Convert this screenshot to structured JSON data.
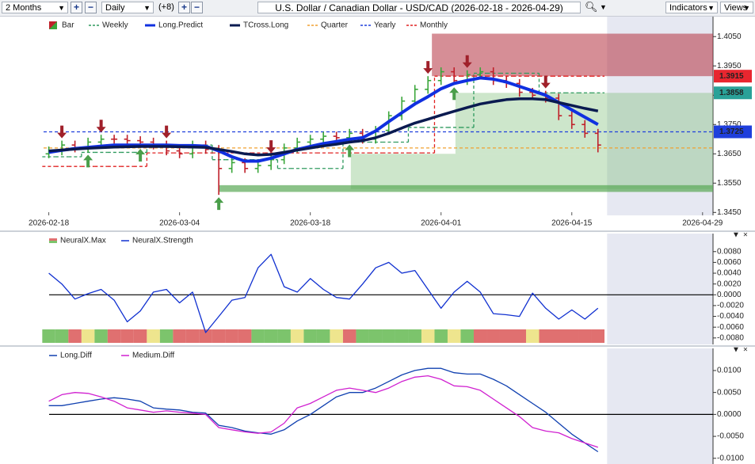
{
  "toolbar": {
    "range": "2 Months",
    "interval": "Daily",
    "offset": "(+8)",
    "symbol": "U.S. Dollar / Canadian Dollar - USD/CAD (2026-02-18 - 2026-04-29)",
    "indicators": "Indicators",
    "views": "Views"
  },
  "chart_data": [
    {
      "type": "ohlc",
      "name": "Bar",
      "up_color": "#3aa63a",
      "down_color": "#c0202a",
      "open": [
        1.365,
        1.366,
        1.368,
        1.367,
        1.369,
        1.37,
        1.37,
        1.3695,
        1.369,
        1.368,
        1.366,
        1.365,
        1.368,
        1.3665,
        1.36,
        1.362,
        1.36,
        1.361,
        1.363,
        1.367,
        1.369,
        1.37,
        1.371,
        1.3705,
        1.372,
        1.37,
        1.373,
        1.378,
        1.383,
        1.387,
        1.39,
        1.393,
        1.39,
        1.392,
        1.393,
        1.39,
        1.389,
        1.386,
        1.385,
        1.384,
        1.378,
        1.375,
        1.372
      ],
      "high": [
        1.3675,
        1.3695,
        1.3695,
        1.3705,
        1.3715,
        1.3715,
        1.3715,
        1.371,
        1.3705,
        1.3695,
        1.3675,
        1.3695,
        1.3695,
        1.368,
        1.3635,
        1.3635,
        1.3625,
        1.3645,
        1.3685,
        1.3705,
        1.3715,
        1.3725,
        1.3725,
        1.3735,
        1.3735,
        1.3745,
        1.3795,
        1.3845,
        1.3885,
        1.3915,
        1.3945,
        1.3945,
        1.3935,
        1.3945,
        1.3945,
        1.3915,
        1.3905,
        1.3875,
        1.3865,
        1.3855,
        1.3795,
        1.3765,
        1.3735
      ],
      "low": [
        1.3635,
        1.3645,
        1.3655,
        1.3655,
        1.3675,
        1.3685,
        1.368,
        1.3675,
        1.3665,
        1.3645,
        1.3635,
        1.3635,
        1.365,
        1.351,
        1.3585,
        1.3585,
        1.3585,
        1.3595,
        1.3615,
        1.3655,
        1.3675,
        1.3685,
        1.369,
        1.369,
        1.3685,
        1.3685,
        1.3715,
        1.3765,
        1.3815,
        1.3855,
        1.3885,
        1.3885,
        1.3885,
        1.3905,
        1.3885,
        1.3875,
        1.3845,
        1.3835,
        1.3825,
        1.3765,
        1.3735,
        1.3705,
        1.3655
      ],
      "close": [
        1.366,
        1.368,
        1.367,
        1.369,
        1.37,
        1.37,
        1.3695,
        1.369,
        1.368,
        1.366,
        1.365,
        1.368,
        1.3665,
        1.36,
        1.362,
        1.36,
        1.361,
        1.363,
        1.367,
        1.369,
        1.37,
        1.371,
        1.3705,
        1.372,
        1.37,
        1.373,
        1.378,
        1.383,
        1.387,
        1.39,
        1.393,
        1.39,
        1.392,
        1.393,
        1.39,
        1.389,
        1.386,
        1.385,
        1.384,
        1.378,
        1.375,
        1.372,
        1.368
      ],
      "series": [
        {
          "name": "Weekly",
          "color": "#2e9a5e",
          "dash": true,
          "step": true,
          "values": [
            1.364,
            1.364,
            1.364,
            1.3655,
            1.3655,
            1.3655,
            1.3655,
            1.3655,
            1.368,
            1.368,
            1.368,
            1.368,
            1.368,
            1.363,
            1.363,
            1.363,
            1.363,
            1.363,
            1.36,
            1.36,
            1.36,
            1.36,
            1.36,
            1.369,
            1.369,
            1.369,
            1.369,
            1.369,
            1.374,
            1.374,
            1.374,
            1.374,
            1.374,
            1.3925,
            1.3925,
            1.3925,
            1.3925,
            1.3925,
            1.3858,
            1.3858,
            1.3858,
            1.3858,
            1.3858
          ]
        },
        {
          "name": "Long.Predict",
          "color": "#1030e0",
          "width": 4,
          "values": [
            1.3655,
            1.3662,
            1.3668,
            1.3672,
            1.3676,
            1.368,
            1.368,
            1.368,
            1.368,
            1.368,
            1.3678,
            1.3678,
            1.3676,
            1.366,
            1.364,
            1.3625,
            1.3625,
            1.3635,
            1.365,
            1.3665,
            1.3675,
            1.3685,
            1.3692,
            1.37,
            1.3705,
            1.3728,
            1.376,
            1.379,
            1.382,
            1.3845,
            1.3872,
            1.389,
            1.39,
            1.3909,
            1.3905,
            1.3895,
            1.388,
            1.3865,
            1.385,
            1.3825,
            1.38,
            1.3775,
            1.375
          ]
        },
        {
          "name": "TCross.Long",
          "color": "#0a1a50",
          "width": 3.5,
          "values": [
            1.366,
            1.3663,
            1.3666,
            1.3669,
            1.3671,
            1.3673,
            1.3674,
            1.3675,
            1.3675,
            1.3675,
            1.3674,
            1.3673,
            1.3672,
            1.3665,
            1.3658,
            1.365,
            1.3646,
            1.3648,
            1.3655,
            1.3663,
            1.367,
            1.3677,
            1.3683,
            1.369,
            1.3695,
            1.3705,
            1.372,
            1.3738,
            1.3755,
            1.3768,
            1.3782,
            1.3795,
            1.3808,
            1.382,
            1.3828,
            1.3835,
            1.3838,
            1.3838,
            1.3835,
            1.3825,
            1.3815,
            1.3805,
            1.3796
          ]
        },
        {
          "name": "Quarter",
          "color": "#f0a030",
          "dash": true,
          "level": 1.367
        },
        {
          "name": "Yearly",
          "color": "#1f3fdc",
          "dash": true,
          "level": 1.3725
        },
        {
          "name": "Monthly",
          "color": "#e02020",
          "dash": true,
          "step": true,
          "values": [
            1.3607,
            1.3607,
            1.3607,
            1.3607,
            1.3607,
            1.3607,
            1.3607,
            1.3607,
            1.3653,
            1.3653,
            1.3653,
            1.3653,
            1.3653,
            1.3653,
            1.3653,
            1.3653,
            1.3653,
            1.3653,
            1.3653,
            1.3653,
            1.3653,
            1.3653,
            1.3653,
            1.3653,
            1.3653,
            1.3653,
            1.3653,
            1.3653,
            1.3653,
            1.3653,
            1.3915,
            1.3915,
            1.3915,
            1.3915,
            1.3915,
            1.3915,
            1.3915,
            1.3915,
            1.3915,
            1.3915,
            1.3915,
            1.3915,
            1.3915
          ]
        }
      ],
      "zones": [
        {
          "x0": 29.3,
          "x1": 50.8,
          "y0": 1.3915,
          "y1": 1.406,
          "color": "#b5313f",
          "opacity": 0.55
        },
        {
          "x0": 23.1,
          "x1": 50.8,
          "y0": 1.353,
          "y1": 1.365,
          "color": "#6fb86a",
          "opacity": 0.35
        },
        {
          "x0": 31.1,
          "x1": 50.8,
          "y0": 1.365,
          "y1": 1.3858,
          "color": "#6fb86a",
          "opacity": 0.35
        },
        {
          "x0": 13.0,
          "x1": 50.8,
          "y0": 1.352,
          "y1": 1.3543,
          "color": "#5aa855",
          "opacity": 0.7
        }
      ],
      "buy_signals": [
        3,
        7,
        13,
        23,
        31
      ],
      "sell_signals": [
        1,
        4,
        9,
        17,
        29,
        32,
        38
      ],
      "price_labels": [
        {
          "value": 1.3915,
          "color": "#e8262f"
        },
        {
          "value": 1.3858,
          "color": "#2aa198"
        },
        {
          "value": 1.3725,
          "color": "#1f3fdc"
        }
      ],
      "future_start": 42.7,
      "xlim": [
        -0.4,
        50.8
      ],
      "xticks": [
        {
          "value": 0,
          "label": "2026-02-18"
        },
        {
          "value": 10,
          "label": "2026-03-04"
        },
        {
          "value": 20,
          "label": "2026-03-18"
        },
        {
          "value": 30,
          "label": "2026-04-01"
        },
        {
          "value": 40,
          "label": "2026-04-15"
        },
        {
          "value": 50,
          "label": "2026-04-29"
        }
      ],
      "ylim": [
        1.344,
        1.411
      ],
      "yticks": [
        {
          "value": 1.345,
          "label": "1.3450"
        },
        {
          "value": 1.355,
          "label": "1.3550"
        },
        {
          "value": 1.365,
          "label": "1.3650"
        },
        {
          "value": 1.375,
          "label": "1.3750"
        },
        {
          "value": 1.385,
          "label": "1.3850"
        },
        {
          "value": 1.395,
          "label": "1.3950"
        },
        {
          "value": 1.405,
          "label": "1.4050"
        }
      ]
    },
    {
      "type": "line",
      "series": [
        {
          "name": "NeuralX.Max",
          "colors": [
            "#7cc46c",
            "#7cc46c",
            "#e07070",
            "#eee58e",
            "#7cc46c",
            "#e07070",
            "#e07070",
            "#e07070",
            "#eee58e",
            "#7cc46c",
            "#e07070",
            "#e07070",
            "#e07070",
            "#e07070",
            "#e07070",
            "#e07070",
            "#7cc46c",
            "#7cc46c",
            "#7cc46c",
            "#eee58e",
            "#7cc46c",
            "#7cc46c",
            "#eee58e",
            "#e07070",
            "#7cc46c",
            "#7cc46c",
            "#7cc46c",
            "#7cc46c",
            "#7cc46c",
            "#eee58e",
            "#7cc46c",
            "#eee58e",
            "#7cc46c",
            "#e07070",
            "#e07070",
            "#e07070",
            "#e07070",
            "#eee58e",
            "#e07070",
            "#e07070",
            "#e07070",
            "#e07070",
            "#e07070"
          ]
        },
        {
          "name": "NeuralX.Strength",
          "color": "#1030d0",
          "values": [
            0.004,
            0.002,
            -0.0008,
            0.0002,
            0.001,
            -0.001,
            -0.005,
            -0.003,
            0.0005,
            0.001,
            -0.0015,
            0.0005,
            -0.007,
            -0.004,
            -0.001,
            -0.0005,
            0.005,
            0.0075,
            0.0015,
            0.0005,
            0.003,
            0.001,
            -0.0005,
            -0.0008,
            0.002,
            0.005,
            0.006,
            0.004,
            0.0045,
            0.001,
            -0.0025,
            0.0005,
            0.0025,
            0.0005,
            -0.0035,
            -0.0037,
            -0.004,
            0.0003,
            -0.0025,
            -0.0045,
            -0.0028,
            -0.0045,
            -0.0025
          ]
        }
      ],
      "zero_line": true,
      "future_start": 42.7,
      "xlim": [
        -0.4,
        50.8
      ],
      "ylim": [
        -0.0092,
        0.0109
      ],
      "yticks": [
        {
          "value": 0.008,
          "label": "0.0080"
        },
        {
          "value": 0.006,
          "label": "0.0060"
        },
        {
          "value": 0.004,
          "label": "0.0040"
        },
        {
          "value": 0.002,
          "label": "0.0020"
        },
        {
          "value": 0,
          "label": "0.0000"
        },
        {
          "value": -0.002,
          "label": "-0.0020"
        },
        {
          "value": -0.004,
          "label": "-0.0040"
        },
        {
          "value": -0.006,
          "label": "-0.0060"
        },
        {
          "value": -0.008,
          "label": "-0.0080"
        }
      ]
    },
    {
      "type": "line",
      "series": [
        {
          "name": "Long.Diff",
          "color": "#1040b0",
          "values": [
            0.002,
            0.002,
            0.0025,
            0.003,
            0.0035,
            0.0038,
            0.0035,
            0.003,
            0.0015,
            0.0012,
            0.001,
            0.0005,
            0.0003,
            -0.0025,
            -0.003,
            -0.0038,
            -0.0042,
            -0.0045,
            -0.0035,
            -0.0015,
            0.0,
            0.002,
            0.004,
            0.005,
            0.005,
            0.006,
            0.0075,
            0.009,
            0.01,
            0.0105,
            0.0105,
            0.0095,
            0.0092,
            0.0092,
            0.008,
            0.0065,
            0.0045,
            0.0025,
            0.0005,
            -0.002,
            -0.0045,
            -0.0065,
            -0.0085
          ]
        },
        {
          "name": "Medium.Diff",
          "color": "#d020d0",
          "values": [
            0.003,
            0.0045,
            0.005,
            0.0048,
            0.004,
            0.003,
            0.0015,
            0.001,
            0.0005,
            0.0008,
            0.0005,
            0.0003,
            0.0,
            -0.003,
            -0.0035,
            -0.004,
            -0.0043,
            -0.004,
            -0.002,
            0.0015,
            0.0025,
            0.004,
            0.0055,
            0.006,
            0.0055,
            0.005,
            0.006,
            0.0075,
            0.0085,
            0.0088,
            0.008,
            0.0065,
            0.0063,
            0.0055,
            0.0035,
            0.0015,
            -0.0005,
            -0.003,
            -0.0038,
            -0.0042,
            -0.0055,
            -0.0065,
            -0.0075
          ]
        }
      ],
      "zero_line": true,
      "future_start": 42.7,
      "xlim": [
        -0.4,
        50.8
      ],
      "ylim": [
        -0.0113,
        0.0145
      ],
      "yticks": [
        {
          "value": 0.01,
          "label": "0.0100"
        },
        {
          "value": 0.005,
          "label": "0.0050"
        },
        {
          "value": 0,
          "label": "0.0000"
        },
        {
          "value": -0.005,
          "label": "-0.0050"
        },
        {
          "value": -0.01,
          "label": "-0.0100"
        }
      ]
    }
  ]
}
